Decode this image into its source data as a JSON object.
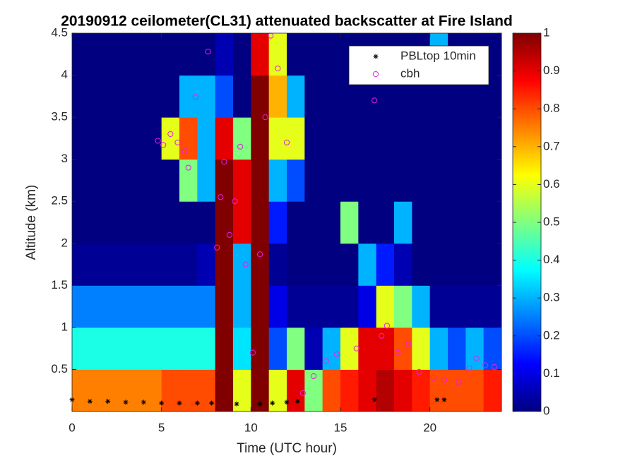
{
  "chart_data": {
    "type": "heatmap",
    "title": "20190912 ceilometer(CL31) attenuated backscatter at Fire Island",
    "x_label": "Time (UTC hour)",
    "y_label": "Altitude (km)",
    "xlim": [
      0,
      24
    ],
    "ylim": [
      0,
      4.5
    ],
    "xticks": [
      0,
      5,
      10,
      15,
      20
    ],
    "yticks": [
      0.5,
      1,
      1.5,
      2,
      2.5,
      3,
      3.5,
      4,
      4.5
    ],
    "colormap": "jet",
    "clim": [
      0,
      1
    ],
    "cticks": [
      0,
      0.1,
      0.2,
      0.3,
      0.4,
      0.5,
      0.6,
      0.7,
      0.8,
      0.9,
      1
    ],
    "xbins": [
      0,
      1,
      2,
      3,
      4,
      5,
      6,
      7,
      8,
      9,
      10,
      11,
      12,
      13,
      14,
      15,
      16,
      17,
      18,
      19,
      20,
      21,
      22,
      23,
      24
    ],
    "ybins": [
      0,
      0.5,
      1,
      1.5,
      2,
      2.5,
      3,
      3.5,
      4,
      4.5
    ],
    "z": [
      [
        0.75,
        0.75,
        0.75,
        0.75,
        0.75,
        0.8,
        0.8,
        0.8,
        1,
        0.6,
        1,
        0.6,
        0.9,
        0.5,
        0.8,
        0.85,
        0.9,
        0.95,
        0.9,
        0.85,
        0.8,
        0.8,
        0.8,
        0.85
      ],
      [
        0.4,
        0.4,
        0.4,
        0.4,
        0.4,
        0.4,
        0.4,
        0.4,
        1,
        0.35,
        1,
        0.2,
        0.5,
        0.05,
        0.3,
        0.6,
        0.9,
        0.9,
        0.8,
        0.6,
        0.3,
        0.2,
        0.3,
        0.2
      ],
      [
        0.25,
        0.25,
        0.25,
        0.25,
        0.25,
        0.25,
        0.25,
        0.25,
        1,
        0.3,
        1,
        0.1,
        0.02,
        0.02,
        0.02,
        0.02,
        0.1,
        0.6,
        0.5,
        0.3,
        0.02,
        0.02,
        0.02,
        0.02
      ],
      [
        0.02,
        0.02,
        0.02,
        0.02,
        0.02,
        0.02,
        0.02,
        0.05,
        1,
        0.3,
        1,
        0.02,
        0,
        0,
        0,
        0,
        0.3,
        0.15,
        0.05,
        0,
        0,
        0,
        0,
        0
      ],
      [
        0,
        0,
        0,
        0,
        0,
        0,
        0,
        0,
        1,
        0.9,
        1,
        0.15,
        0,
        0,
        0,
        0.5,
        0,
        0,
        0.3,
        0,
        0,
        0,
        0,
        0
      ],
      [
        0,
        0,
        0,
        0,
        0,
        0,
        0.5,
        0.3,
        1,
        0.9,
        1,
        0.3,
        0.2,
        0,
        0,
        0,
        0,
        0,
        0,
        0,
        0,
        0,
        0,
        0
      ],
      [
        0,
        0,
        0,
        0,
        0,
        0.6,
        0.8,
        0.3,
        0.9,
        0.5,
        1,
        0.6,
        0.6,
        0,
        0,
        0,
        0,
        0,
        0,
        0,
        0,
        0,
        0,
        0
      ],
      [
        0,
        0,
        0,
        0,
        0,
        0,
        0.3,
        0.3,
        0.2,
        0,
        1,
        0.7,
        0.3,
        0,
        0,
        0,
        0,
        0,
        0,
        0,
        0,
        0,
        0,
        0
      ],
      [
        0,
        0,
        0,
        0,
        0,
        0,
        0,
        0,
        0.05,
        0,
        0.9,
        0.6,
        0,
        0,
        0,
        0,
        0,
        0,
        0,
        0,
        0.3,
        0,
        0,
        0
      ]
    ],
    "legend": "upper-right",
    "series": [
      {
        "name": "PBLtop 10min",
        "color": "#000000",
        "marker": "asterisk",
        "x": [
          0,
          1,
          2,
          3,
          4,
          5,
          6,
          7,
          7.8,
          9.2,
          10.5,
          11.2,
          12,
          12.6,
          16.9,
          20.4,
          20.8
        ],
        "y": [
          0.14,
          0.12,
          0.12,
          0.11,
          0.11,
          0.1,
          0.1,
          0.1,
          0.1,
          0.09,
          0.09,
          0.1,
          0.11,
          0.12,
          0.14,
          0.14,
          0.14
        ]
      },
      {
        "name": "cbh",
        "color": "#e81ee8",
        "marker": "circle",
        "x": [
          4.8,
          5.1,
          5.5,
          5.9,
          6.3,
          6.5,
          6.9,
          7.6,
          8.1,
          8.3,
          8.5,
          8.8,
          9.1,
          9.4,
          9.7,
          10.1,
          10.5,
          10.8,
          11.1,
          11.5,
          12.0,
          12.9,
          13.5,
          14.2,
          14.8,
          15.9,
          16.9,
          17.3,
          17.6,
          18.2,
          18.8,
          19.4,
          20.2,
          20.8,
          21.6,
          22.2,
          22.6,
          23.1,
          23.6
        ],
        "y": [
          3.22,
          3.17,
          3.3,
          3.2,
          3.1,
          2.9,
          3.74,
          4.28,
          1.95,
          2.55,
          2.97,
          2.1,
          2.5,
          3.15,
          1.75,
          0.7,
          1.87,
          3.5,
          4.47,
          4.08,
          3.2,
          0.22,
          0.42,
          0.6,
          0.68,
          0.75,
          3.7,
          0.9,
          1.02,
          0.7,
          0.8,
          0.47,
          0.4,
          0.38,
          0.35,
          0.52,
          0.63,
          0.55,
          0.53
        ]
      }
    ]
  }
}
